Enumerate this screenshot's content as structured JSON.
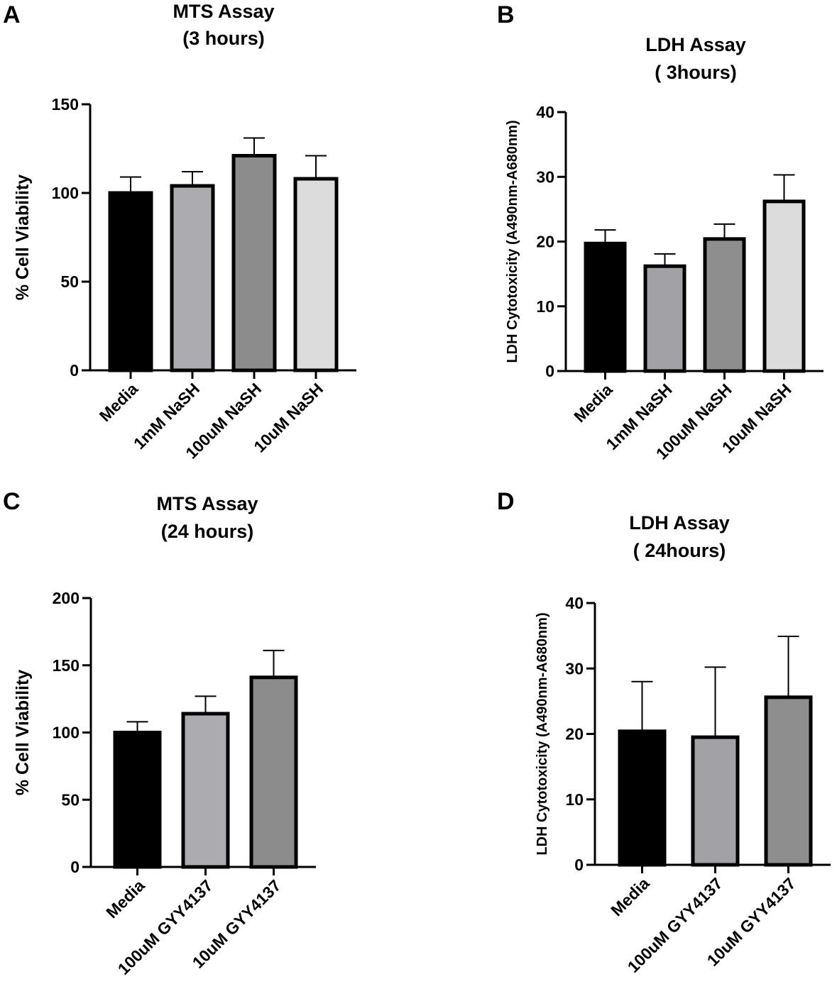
{
  "chart_data": [
    {
      "panel": "A",
      "type": "bar",
      "title": [
        "MTS Assay",
        "(3 hours)"
      ],
      "ylabel": "% Cell Viability",
      "xlabel": "",
      "ylim": [
        0,
        150
      ],
      "yticks": [
        0,
        50,
        100,
        150
      ],
      "categories": [
        "Media",
        "1mM NaSH",
        "100uM NaSH",
        "10uM NaSH"
      ],
      "values": [
        100,
        104,
        121,
        108
      ],
      "errors": [
        9,
        8,
        10,
        13
      ],
      "colors": [
        "#000000",
        "#acacb0",
        "#8c8c8c",
        "#dcdcdc"
      ]
    },
    {
      "panel": "B",
      "type": "bar",
      "title": [
        "LDH Assay",
        "( 3hours)"
      ],
      "ylabel": "LDH Cytotoxicity (A490nm-A680nm)",
      "xlabel": "",
      "ylim": [
        0,
        40
      ],
      "yticks": [
        0,
        10,
        20,
        30,
        40
      ],
      "categories": [
        "Media",
        "1mM NaSH",
        "100uM NaSH",
        "10uM NaSH"
      ],
      "values": [
        19.7,
        16.2,
        20.4,
        26.2
      ],
      "errors": [
        2.1,
        1.9,
        2.3,
        4.1
      ],
      "colors": [
        "#000000",
        "#a2a2a6",
        "#8e8e8e",
        "#dcdcdc"
      ]
    },
    {
      "panel": "C",
      "type": "bar",
      "title": [
        "MTS Assay",
        "(24 hours)"
      ],
      "ylabel": "% Cell Viability",
      "xlabel": "",
      "ylim": [
        0,
        200
      ],
      "yticks": [
        0,
        50,
        100,
        150,
        200
      ],
      "categories": [
        "Media",
        "100uM GYY4137",
        "10uM GYY4137"
      ],
      "values": [
        100,
        114,
        141
      ],
      "errors": [
        8,
        13,
        20
      ],
      "colors": [
        "#000000",
        "#acacb0",
        "#8c8c8c"
      ]
    },
    {
      "panel": "D",
      "type": "bar",
      "title": [
        "LDH Assay",
        "( 24hours)"
      ],
      "ylabel": "LDH Cytotoxicity (A490nm-A680nm)",
      "xlabel": "",
      "ylim": [
        0,
        40
      ],
      "yticks": [
        0,
        10,
        20,
        30,
        40
      ],
      "categories": [
        "Media",
        "100uM GYY4137",
        "10uM GYY4137"
      ],
      "values": [
        20.4,
        19.5,
        25.6
      ],
      "errors": [
        7.6,
        10.7,
        9.3
      ],
      "colors": [
        "#000000",
        "#a2a2a6",
        "#8e8e8e"
      ]
    }
  ]
}
